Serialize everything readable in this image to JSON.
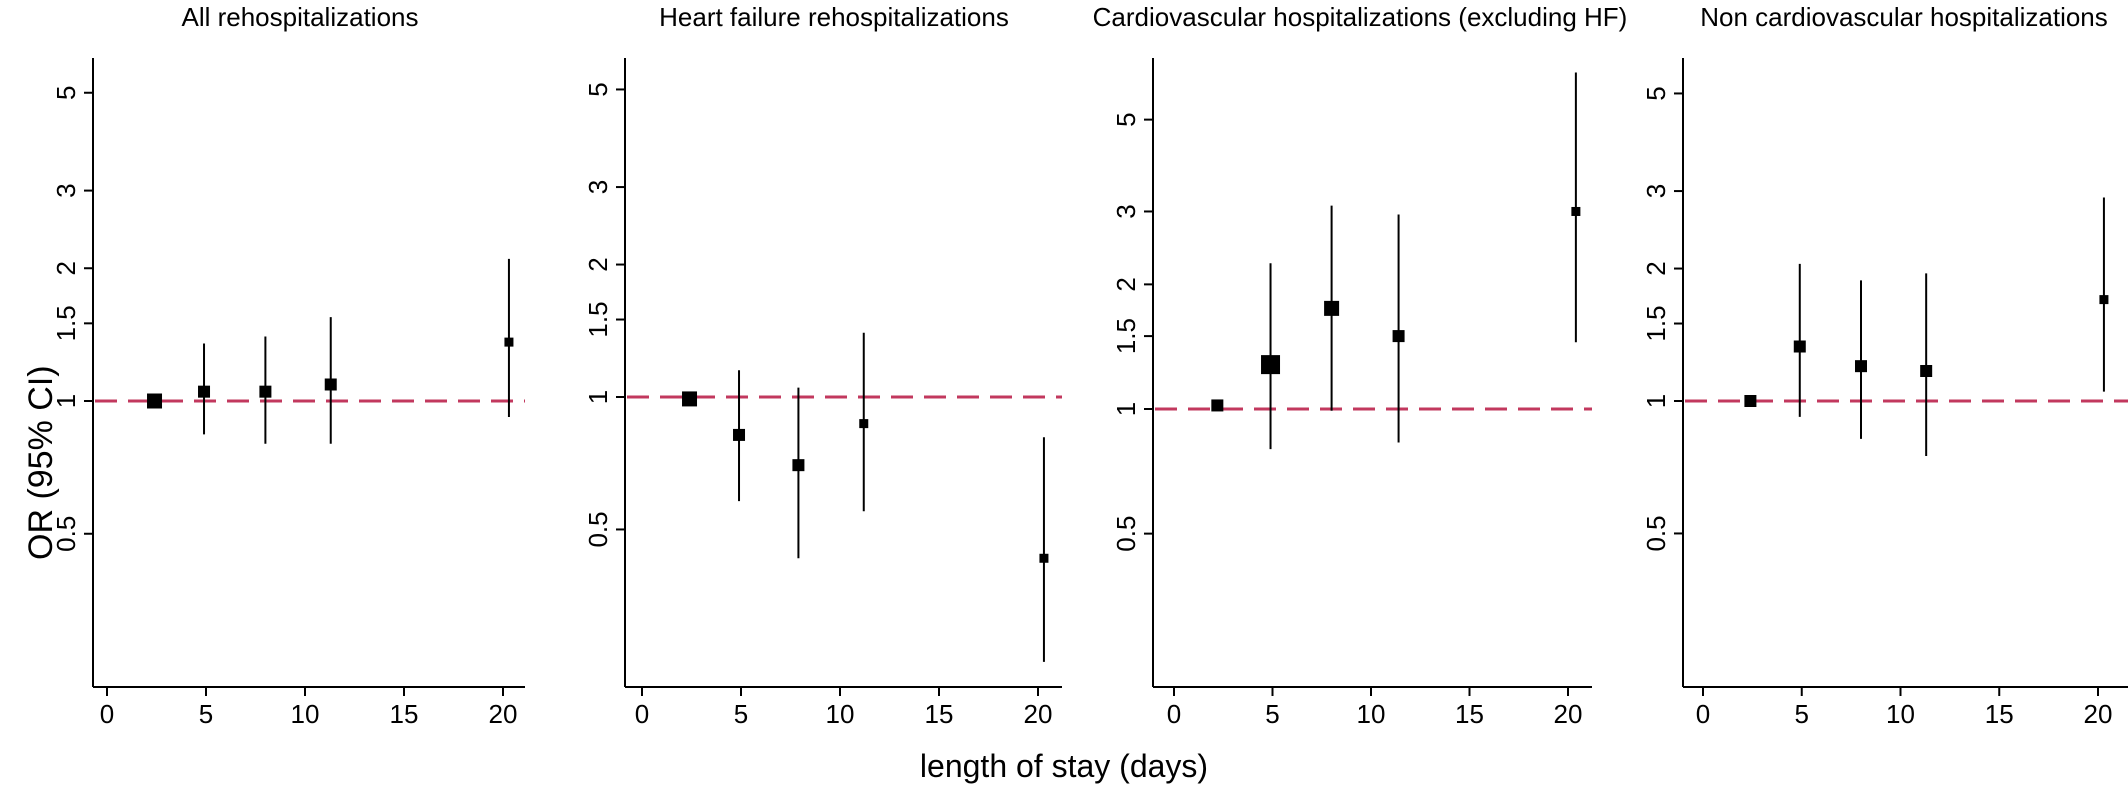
{
  "figure": {
    "ylabel": "OR (95% CI)",
    "xlabel": "length of stay (days)",
    "ref_line_color": "#c2385e"
  },
  "chart_data": [
    {
      "type": "scatter",
      "title": "All rehospitalizations",
      "y_scale": "log",
      "x_ticks": [
        0,
        5,
        10,
        15,
        20
      ],
      "y_ticks": [
        0.5,
        1,
        1.5,
        2,
        3,
        5
      ],
      "reference_line": 1,
      "points": [
        {
          "x": 2.4,
          "or": 1.0,
          "lo": 1.0,
          "hi": 1.0,
          "weight": "large"
        },
        {
          "x": 4.9,
          "or": 1.05,
          "lo": 0.84,
          "hi": 1.35,
          "weight": "medium"
        },
        {
          "x": 8.0,
          "or": 1.05,
          "lo": 0.8,
          "hi": 1.4,
          "weight": "medium"
        },
        {
          "x": 11.3,
          "or": 1.09,
          "lo": 0.8,
          "hi": 1.55,
          "weight": "medium"
        },
        {
          "x": 20.3,
          "or": 1.36,
          "lo": 0.92,
          "hi": 2.1,
          "weight": "small"
        }
      ]
    },
    {
      "type": "scatter",
      "title": "Heart failure rehospitalizations",
      "y_scale": "log",
      "x_ticks": [
        0,
        5,
        10,
        15,
        20
      ],
      "y_ticks": [
        0.5,
        1,
        1.5,
        2,
        3,
        5
      ],
      "reference_line": 1,
      "points": [
        {
          "x": 2.4,
          "or": 0.99,
          "lo": 0.99,
          "hi": 0.99,
          "weight": "large"
        },
        {
          "x": 4.9,
          "or": 0.82,
          "lo": 0.58,
          "hi": 1.15,
          "weight": "medium"
        },
        {
          "x": 7.9,
          "or": 0.7,
          "lo": 0.43,
          "hi": 1.05,
          "weight": "medium"
        },
        {
          "x": 11.2,
          "or": 0.87,
          "lo": 0.55,
          "hi": 1.4,
          "weight": "small"
        },
        {
          "x": 20.3,
          "or": 0.43,
          "lo": 0.25,
          "hi": 0.81,
          "weight": "small"
        }
      ]
    },
    {
      "type": "scatter",
      "title": "Cardiovascular hospitalizations (excluding HF)",
      "y_scale": "log",
      "x_ticks": [
        0,
        5,
        10,
        15,
        20
      ],
      "y_ticks": [
        0.5,
        1,
        1.5,
        2,
        3,
        5
      ],
      "reference_line": 1,
      "points": [
        {
          "x": 2.2,
          "or": 1.02,
          "lo": 1.02,
          "hi": 1.02,
          "weight": "medium"
        },
        {
          "x": 4.9,
          "or": 1.28,
          "lo": 0.8,
          "hi": 2.25,
          "weight": "xlarge"
        },
        {
          "x": 8.0,
          "or": 1.75,
          "lo": 0.99,
          "hi": 3.1,
          "weight": "large"
        },
        {
          "x": 11.4,
          "or": 1.5,
          "lo": 0.83,
          "hi": 2.95,
          "weight": "medium"
        },
        {
          "x": 20.4,
          "or": 3.0,
          "lo": 1.45,
          "hi": 6.5,
          "weight": "small"
        }
      ]
    },
    {
      "type": "scatter",
      "title": "Non cardiovascular hospitalizations",
      "y_scale": "log",
      "x_ticks": [
        0,
        5,
        10,
        15,
        20
      ],
      "y_ticks": [
        0.5,
        1,
        1.5,
        2,
        3,
        5
      ],
      "reference_line": 1,
      "points": [
        {
          "x": 2.4,
          "or": 1.0,
          "lo": 1.0,
          "hi": 1.0,
          "weight": "medium"
        },
        {
          "x": 4.9,
          "or": 1.33,
          "lo": 0.92,
          "hi": 2.05,
          "weight": "medium"
        },
        {
          "x": 8.0,
          "or": 1.2,
          "lo": 0.82,
          "hi": 1.88,
          "weight": "medium"
        },
        {
          "x": 11.3,
          "or": 1.17,
          "lo": 0.75,
          "hi": 1.95,
          "weight": "medium"
        },
        {
          "x": 20.3,
          "or": 1.7,
          "lo": 1.05,
          "hi": 2.9,
          "weight": "small"
        }
      ]
    }
  ]
}
